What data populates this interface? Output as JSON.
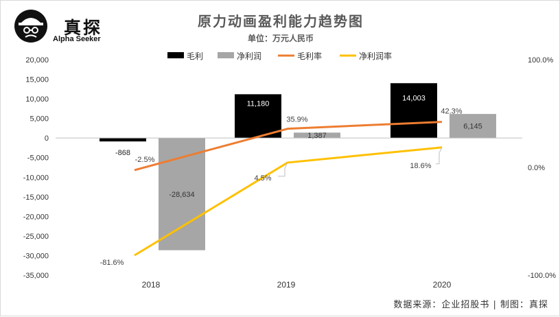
{
  "brand": {
    "name": "真探",
    "tagline": "Alpha Seeker",
    "logo_icon": "detective-hat-icon"
  },
  "footer": {
    "source": "数据来源：企业招股书 | 制图：真探"
  },
  "chart_data": {
    "type": "bar",
    "title": "原力动画盈利能力趋势图",
    "subtitle": "单位：万元人民币",
    "categories": [
      "2018",
      "2019",
      "2020"
    ],
    "legend_position": "top-center",
    "grid": false,
    "y_left": {
      "ylim": [
        -35000,
        20000
      ],
      "ticks": [
        "20,000",
        "15,000",
        "10,000",
        "5,000",
        "0",
        "-5,000",
        "-10,000",
        "-15,000",
        "-20,000",
        "-25,000",
        "-30,000",
        "-35,000"
      ]
    },
    "y_right": {
      "ylim": [
        -100,
        100
      ],
      "ticks": [
        "100.0%",
        "0.0%",
        "-100.0%"
      ]
    },
    "series": [
      {
        "name": "毛利",
        "kind": "bar",
        "axis": "left",
        "color": "#000000",
        "values": [
          -868,
          11180,
          14003
        ],
        "labels": [
          "-868",
          "11,180",
          "14,003"
        ]
      },
      {
        "name": "净利润",
        "kind": "bar",
        "axis": "left",
        "color": "#a6a6a6",
        "values": [
          -28634,
          1387,
          6145
        ],
        "labels": [
          "-28,634",
          "1,387",
          "6,145"
        ]
      },
      {
        "name": "毛利率",
        "kind": "line",
        "axis": "right",
        "color": "#ed7d31",
        "values": [
          -2.5,
          35.9,
          42.3
        ],
        "labels": [
          "-2.5%",
          "35.9%",
          "42.3%"
        ]
      },
      {
        "name": "净利润率",
        "kind": "line",
        "axis": "right",
        "color": "#ffc000",
        "values": [
          -81.6,
          4.5,
          18.6
        ],
        "labels": [
          "-81.6%",
          "4.5%",
          "18.6%"
        ]
      }
    ]
  }
}
